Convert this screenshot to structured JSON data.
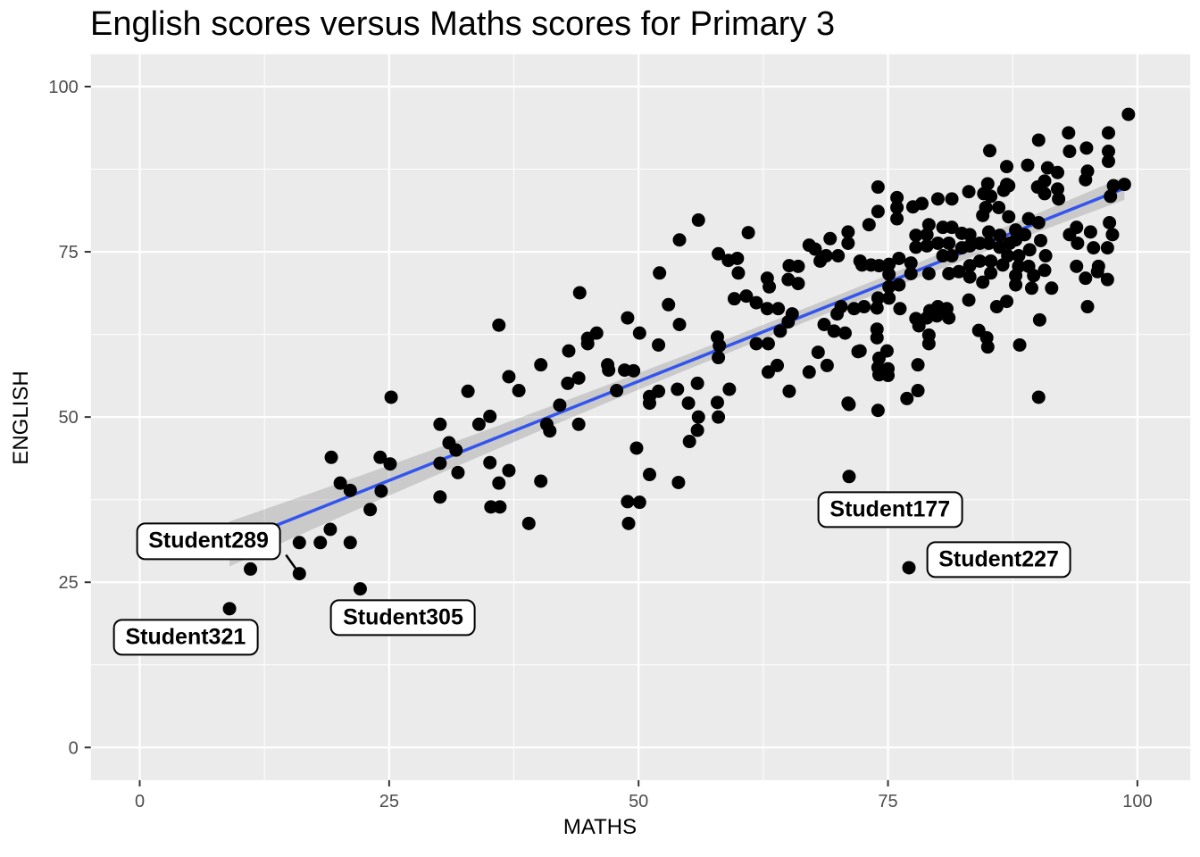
{
  "title": "English scores versus Maths scores for Primary 3",
  "colors": {
    "panel_background": "#EBEBEB",
    "gridline": "#FFFFFF",
    "point": "#000000",
    "smooth_line": "#3355EE",
    "confidence_band": "#666666",
    "axis_tick_text": "#4D4D4D",
    "axis_title_text": "#000000",
    "tick_mark": "#333333",
    "label_box_bg": "#FFFFFF",
    "label_box_border": "#000000"
  },
  "chart_data": {
    "type": "scatter",
    "title": "English scores versus Maths scores for Primary 3",
    "xlabel": "MATHS",
    "ylabel": "ENGLISH",
    "xlim": [
      -4.9,
      105.3
    ],
    "ylim": [
      -4.95,
      104.9
    ],
    "x_ticks": [
      0,
      25,
      50,
      75,
      100
    ],
    "y_ticks": [
      0,
      25,
      50,
      75,
      100
    ],
    "x_minor_ticks": [
      12.5,
      37.5,
      62.5,
      87.5
    ],
    "y_minor_ticks": [
      12.5,
      37.5,
      62.5,
      87.5
    ],
    "grid": "white major and minor gridlines on grey panel",
    "legend": "none",
    "regression_line": {
      "slope": 0.6,
      "intercept": 25.4,
      "x_start": 9,
      "x_end": 98.7,
      "color": "#3355EE"
    },
    "confidence_band": {
      "x_start": 9,
      "x_end": 98.7,
      "half_width_min": 1.05,
      "half_width_quad": 0.0007,
      "center_x": 67
    },
    "annotations": [
      {
        "label": "Student289",
        "point": [
          16,
          26.3
        ],
        "label_center": [
          6.9,
          31.2
        ],
        "pointer": true
      },
      {
        "label": "Student321",
        "point": [
          9,
          21
        ],
        "label_center": [
          4.6,
          16.7
        ],
        "pointer": false
      },
      {
        "label": "Student305",
        "point": [
          22.1,
          24
        ],
        "label_center": [
          26.4,
          19.6
        ],
        "pointer": false
      },
      {
        "label": "Student177",
        "point": [
          71.1,
          41
        ],
        "label_center": [
          75.2,
          36.0
        ],
        "pointer": false
      },
      {
        "label": "Student227",
        "point": [
          77.1,
          27.2
        ],
        "label_center": [
          86.1,
          28.4
        ],
        "pointer": false
      }
    ],
    "points": [
      [
        9,
        21
      ],
      [
        11.1,
        27
      ],
      [
        16,
        26.3
      ],
      [
        16,
        31
      ],
      [
        18.1,
        31
      ],
      [
        19.1,
        33
      ],
      [
        21.1,
        31
      ],
      [
        22.1,
        24
      ],
      [
        23.1,
        36
      ],
      [
        19.2,
        43.9
      ],
      [
        20.1,
        40
      ],
      [
        21.1,
        38.9
      ],
      [
        24.1,
        43.9
      ],
      [
        24.2,
        38.8
      ],
      [
        25.1,
        42.9
      ],
      [
        25.2,
        53
      ],
      [
        30.1,
        48.9
      ],
      [
        31,
        46.1
      ],
      [
        31.7,
        45
      ],
      [
        30.1,
        43
      ],
      [
        30.1,
        37.9
      ],
      [
        31.9,
        41.6
      ],
      [
        32.9,
        53.9
      ],
      [
        34,
        48.9
      ],
      [
        35.1,
        50.1
      ],
      [
        35.1,
        43.1
      ],
      [
        35.2,
        36.4
      ],
      [
        36.1,
        36.4
      ],
      [
        37,
        41.9
      ],
      [
        36,
        40
      ],
      [
        39,
        33.9
      ],
      [
        40.2,
        40.3
      ],
      [
        36,
        63.9
      ],
      [
        37,
        56.1
      ],
      [
        38,
        54
      ],
      [
        40.2,
        57.9
      ],
      [
        42.1,
        51.8
      ],
      [
        40.8,
        48.9
      ],
      [
        41.1,
        47.9
      ],
      [
        42.9,
        55.1
      ],
      [
        44,
        55.9
      ],
      [
        44,
        48.9
      ],
      [
        43,
        60
      ],
      [
        44.9,
        61.9
      ],
      [
        45.8,
        62.7
      ],
      [
        44.9,
        61.1
      ],
      [
        44.1,
        68.8
      ],
      [
        46.9,
        57.9
      ],
      [
        47,
        57.1
      ],
      [
        48.6,
        57.1
      ],
      [
        49.5,
        57
      ],
      [
        47.8,
        54
      ],
      [
        48.9,
        65
      ],
      [
        50.1,
        62.7
      ],
      [
        49.8,
        45.3
      ],
      [
        48.9,
        37.2
      ],
      [
        49,
        33.9
      ],
      [
        50.1,
        37.1
      ],
      [
        51.1,
        41.3
      ],
      [
        54,
        40.1
      ],
      [
        51.1,
        53.1
      ],
      [
        52,
        53.9
      ],
      [
        52,
        60.9
      ],
      [
        51.1,
        52.1
      ],
      [
        53,
        67
      ],
      [
        54.1,
        64
      ],
      [
        52.1,
        71.8
      ],
      [
        54.1,
        76.8
      ],
      [
        56,
        79.8
      ],
      [
        55,
        52.1
      ],
      [
        53.9,
        54.2
      ],
      [
        55.9,
        55.1
      ],
      [
        56,
        50
      ],
      [
        55.9,
        48
      ],
      [
        55.1,
        46.3
      ],
      [
        57.9,
        52.2
      ],
      [
        58,
        50
      ],
      [
        57.9,
        62.1
      ],
      [
        58.1,
        60.8
      ],
      [
        58,
        59
      ],
      [
        59.1,
        54.2
      ],
      [
        58,
        74.7
      ],
      [
        59,
        73.7
      ],
      [
        59.9,
        74
      ],
      [
        60,
        71.8
      ],
      [
        61,
        77.9
      ],
      [
        59.6,
        67.9
      ],
      [
        60.8,
        68.3
      ],
      [
        61.8,
        67.3
      ],
      [
        62.9,
        66.4
      ],
      [
        64,
        66.4
      ],
      [
        65,
        64.4
      ],
      [
        65.4,
        65.6
      ],
      [
        64.2,
        63
      ],
      [
        61.8,
        61.1
      ],
      [
        63,
        61.1
      ],
      [
        63.9,
        57.8
      ],
      [
        63,
        56.8
      ],
      [
        62.9,
        71
      ],
      [
        63.1,
        69.7
      ],
      [
        65.1,
        72.9
      ],
      [
        66,
        72.8
      ],
      [
        65,
        70.8
      ],
      [
        66,
        70.2
      ],
      [
        65.1,
        53.9
      ],
      [
        67.1,
        56.8
      ],
      [
        68,
        59.8
      ],
      [
        68.9,
        57.8
      ],
      [
        67.1,
        76
      ],
      [
        67.7,
        75.4
      ],
      [
        68.2,
        73.6
      ],
      [
        68.6,
        64
      ],
      [
        69.9,
        65.6
      ],
      [
        69.6,
        63
      ],
      [
        70.7,
        62.7
      ],
      [
        70.3,
        66.7
      ],
      [
        71.6,
        66.4
      ],
      [
        72.6,
        66.7
      ],
      [
        72,
        59.9
      ],
      [
        71,
        52.1
      ],
      [
        72.2,
        60
      ],
      [
        71.1,
        51.9
      ],
      [
        74,
        51
      ],
      [
        71.1,
        41
      ],
      [
        68.8,
        74.4
      ],
      [
        70,
        74.4
      ],
      [
        69.2,
        77
      ],
      [
        71,
        78
      ],
      [
        71,
        76.3
      ],
      [
        72.2,
        73.6
      ],
      [
        72.4,
        73
      ],
      [
        73.3,
        73
      ],
      [
        74.1,
        72.9
      ],
      [
        75.1,
        73.1
      ],
      [
        75.1,
        71.6
      ],
      [
        73.9,
        66.5
      ],
      [
        73.9,
        63.3
      ],
      [
        73.9,
        62
      ],
      [
        74.9,
        60
      ],
      [
        74.1,
        58.9
      ],
      [
        74,
        57.5
      ],
      [
        75,
        57.3
      ],
      [
        74.1,
        56.4
      ],
      [
        75,
        56.3
      ],
      [
        76.2,
        66.4
      ],
      [
        77.8,
        64.9
      ],
      [
        78.1,
        63.8
      ],
      [
        78.9,
        65
      ],
      [
        79.2,
        66.1
      ],
      [
        80,
        66.7
      ],
      [
        79.9,
        65.3
      ],
      [
        80.9,
        66.4
      ],
      [
        81.1,
        65
      ],
      [
        79.1,
        62.4
      ],
      [
        79.1,
        61.1
      ],
      [
        78,
        57.9
      ],
      [
        78,
        54
      ],
      [
        76.9,
        52.8
      ],
      [
        74,
        84.8
      ],
      [
        74,
        81.1
      ],
      [
        73.1,
        79.1
      ],
      [
        75.9,
        83.2
      ],
      [
        75.9,
        81.7
      ],
      [
        75.9,
        80
      ],
      [
        77.5,
        81.8
      ],
      [
        78.4,
        82.3
      ],
      [
        80,
        83
      ],
      [
        81.4,
        83
      ],
      [
        83.1,
        84.1
      ],
      [
        84.6,
        83.8
      ],
      [
        85,
        85.3
      ],
      [
        85.3,
        83.4
      ],
      [
        86.6,
        84.3
      ],
      [
        84.8,
        81.7
      ],
      [
        86.1,
        81.7
      ],
      [
        84.5,
        80.5
      ],
      [
        74,
        68
      ],
      [
        75.1,
        69.7
      ],
      [
        75.1,
        68
      ],
      [
        76.1,
        74
      ],
      [
        76.1,
        70
      ],
      [
        77.3,
        73.3
      ],
      [
        77.3,
        71.7
      ],
      [
        77.8,
        77.5
      ],
      [
        78.9,
        77.6
      ],
      [
        78.9,
        75.9
      ],
      [
        77.8,
        75.7
      ],
      [
        79.1,
        79.1
      ],
      [
        80.5,
        78.7
      ],
      [
        81.4,
        78.7
      ],
      [
        80,
        76.3
      ],
      [
        81.1,
        76.3
      ],
      [
        80.5,
        74.4
      ],
      [
        81.4,
        74.4
      ],
      [
        82.4,
        75.6
      ],
      [
        82.4,
        77.8
      ],
      [
        83.2,
        77.6
      ],
      [
        83.2,
        75.9
      ],
      [
        84.2,
        76.3
      ],
      [
        85.1,
        76.3
      ],
      [
        85.1,
        78
      ],
      [
        86.2,
        77.5
      ],
      [
        86.2,
        75.7
      ],
      [
        87.2,
        76.3
      ],
      [
        87,
        74.4
      ],
      [
        88.1,
        74.4
      ],
      [
        88.1,
        72.8
      ],
      [
        89.1,
        72.8
      ],
      [
        84.2,
        73.6
      ],
      [
        85.3,
        73.6
      ],
      [
        85.3,
        71.8
      ],
      [
        83.2,
        72.9
      ],
      [
        83.2,
        71.2
      ],
      [
        82.1,
        72
      ],
      [
        81.1,
        71.7
      ],
      [
        79.1,
        71.7
      ],
      [
        85.2,
        90.3
      ],
      [
        86.9,
        87.9
      ],
      [
        89,
        88.1
      ],
      [
        90.1,
        91.9
      ],
      [
        91,
        87.7
      ],
      [
        92,
        87
      ],
      [
        93.1,
        93
      ],
      [
        93.2,
        90.2
      ],
      [
        94.9,
        90.7
      ],
      [
        95,
        87.2
      ],
      [
        94.8,
        85.9
      ],
      [
        97.1,
        93
      ],
      [
        97.1,
        90.2
      ],
      [
        97.1,
        88.7
      ],
      [
        99.1,
        95.8
      ],
      [
        90,
        84.8
      ],
      [
        90.7,
        85.7
      ],
      [
        90.7,
        83.8
      ],
      [
        92,
        84.5
      ],
      [
        92.1,
        83
      ],
      [
        86.9,
        85.2
      ],
      [
        87.1,
        85
      ],
      [
        97.6,
        85
      ],
      [
        97.3,
        83.4
      ],
      [
        98.7,
        85.2
      ],
      [
        89.1,
        80
      ],
      [
        87.1,
        80.3
      ],
      [
        87.8,
        78.3
      ],
      [
        88.7,
        77.6
      ],
      [
        87.8,
        76.8
      ],
      [
        90.1,
        79.4
      ],
      [
        90.3,
        76.7
      ],
      [
        89.2,
        75.3
      ],
      [
        90.8,
        74.4
      ],
      [
        93.2,
        77.6
      ],
      [
        93.9,
        78.7
      ],
      [
        94,
        76.3
      ],
      [
        95.3,
        78
      ],
      [
        95.6,
        75.6
      ],
      [
        97.2,
        79.4
      ],
      [
        97.5,
        77.6
      ],
      [
        97,
        75.6
      ],
      [
        93.9,
        72.8
      ],
      [
        90.7,
        72.2
      ],
      [
        89.6,
        71.4
      ],
      [
        87.8,
        71.4
      ],
      [
        87.8,
        70
      ],
      [
        89.4,
        69.5
      ],
      [
        91.4,
        69.5
      ],
      [
        94.8,
        71
      ],
      [
        96,
        72
      ],
      [
        96.1,
        72.8
      ],
      [
        97,
        70.8
      ],
      [
        84.5,
        70.4
      ],
      [
        90.2,
        64.7
      ],
      [
        95,
        66.7
      ],
      [
        90.1,
        53
      ],
      [
        88.2,
        60.9
      ],
      [
        85,
        60.6
      ],
      [
        84.9,
        62
      ],
      [
        84.1,
        63.1
      ],
      [
        85.9,
        66.7
      ],
      [
        86.9,
        67.5
      ],
      [
        83.1,
        67.7
      ],
      [
        86.5,
        73
      ],
      [
        77.1,
        27.2
      ]
    ]
  }
}
